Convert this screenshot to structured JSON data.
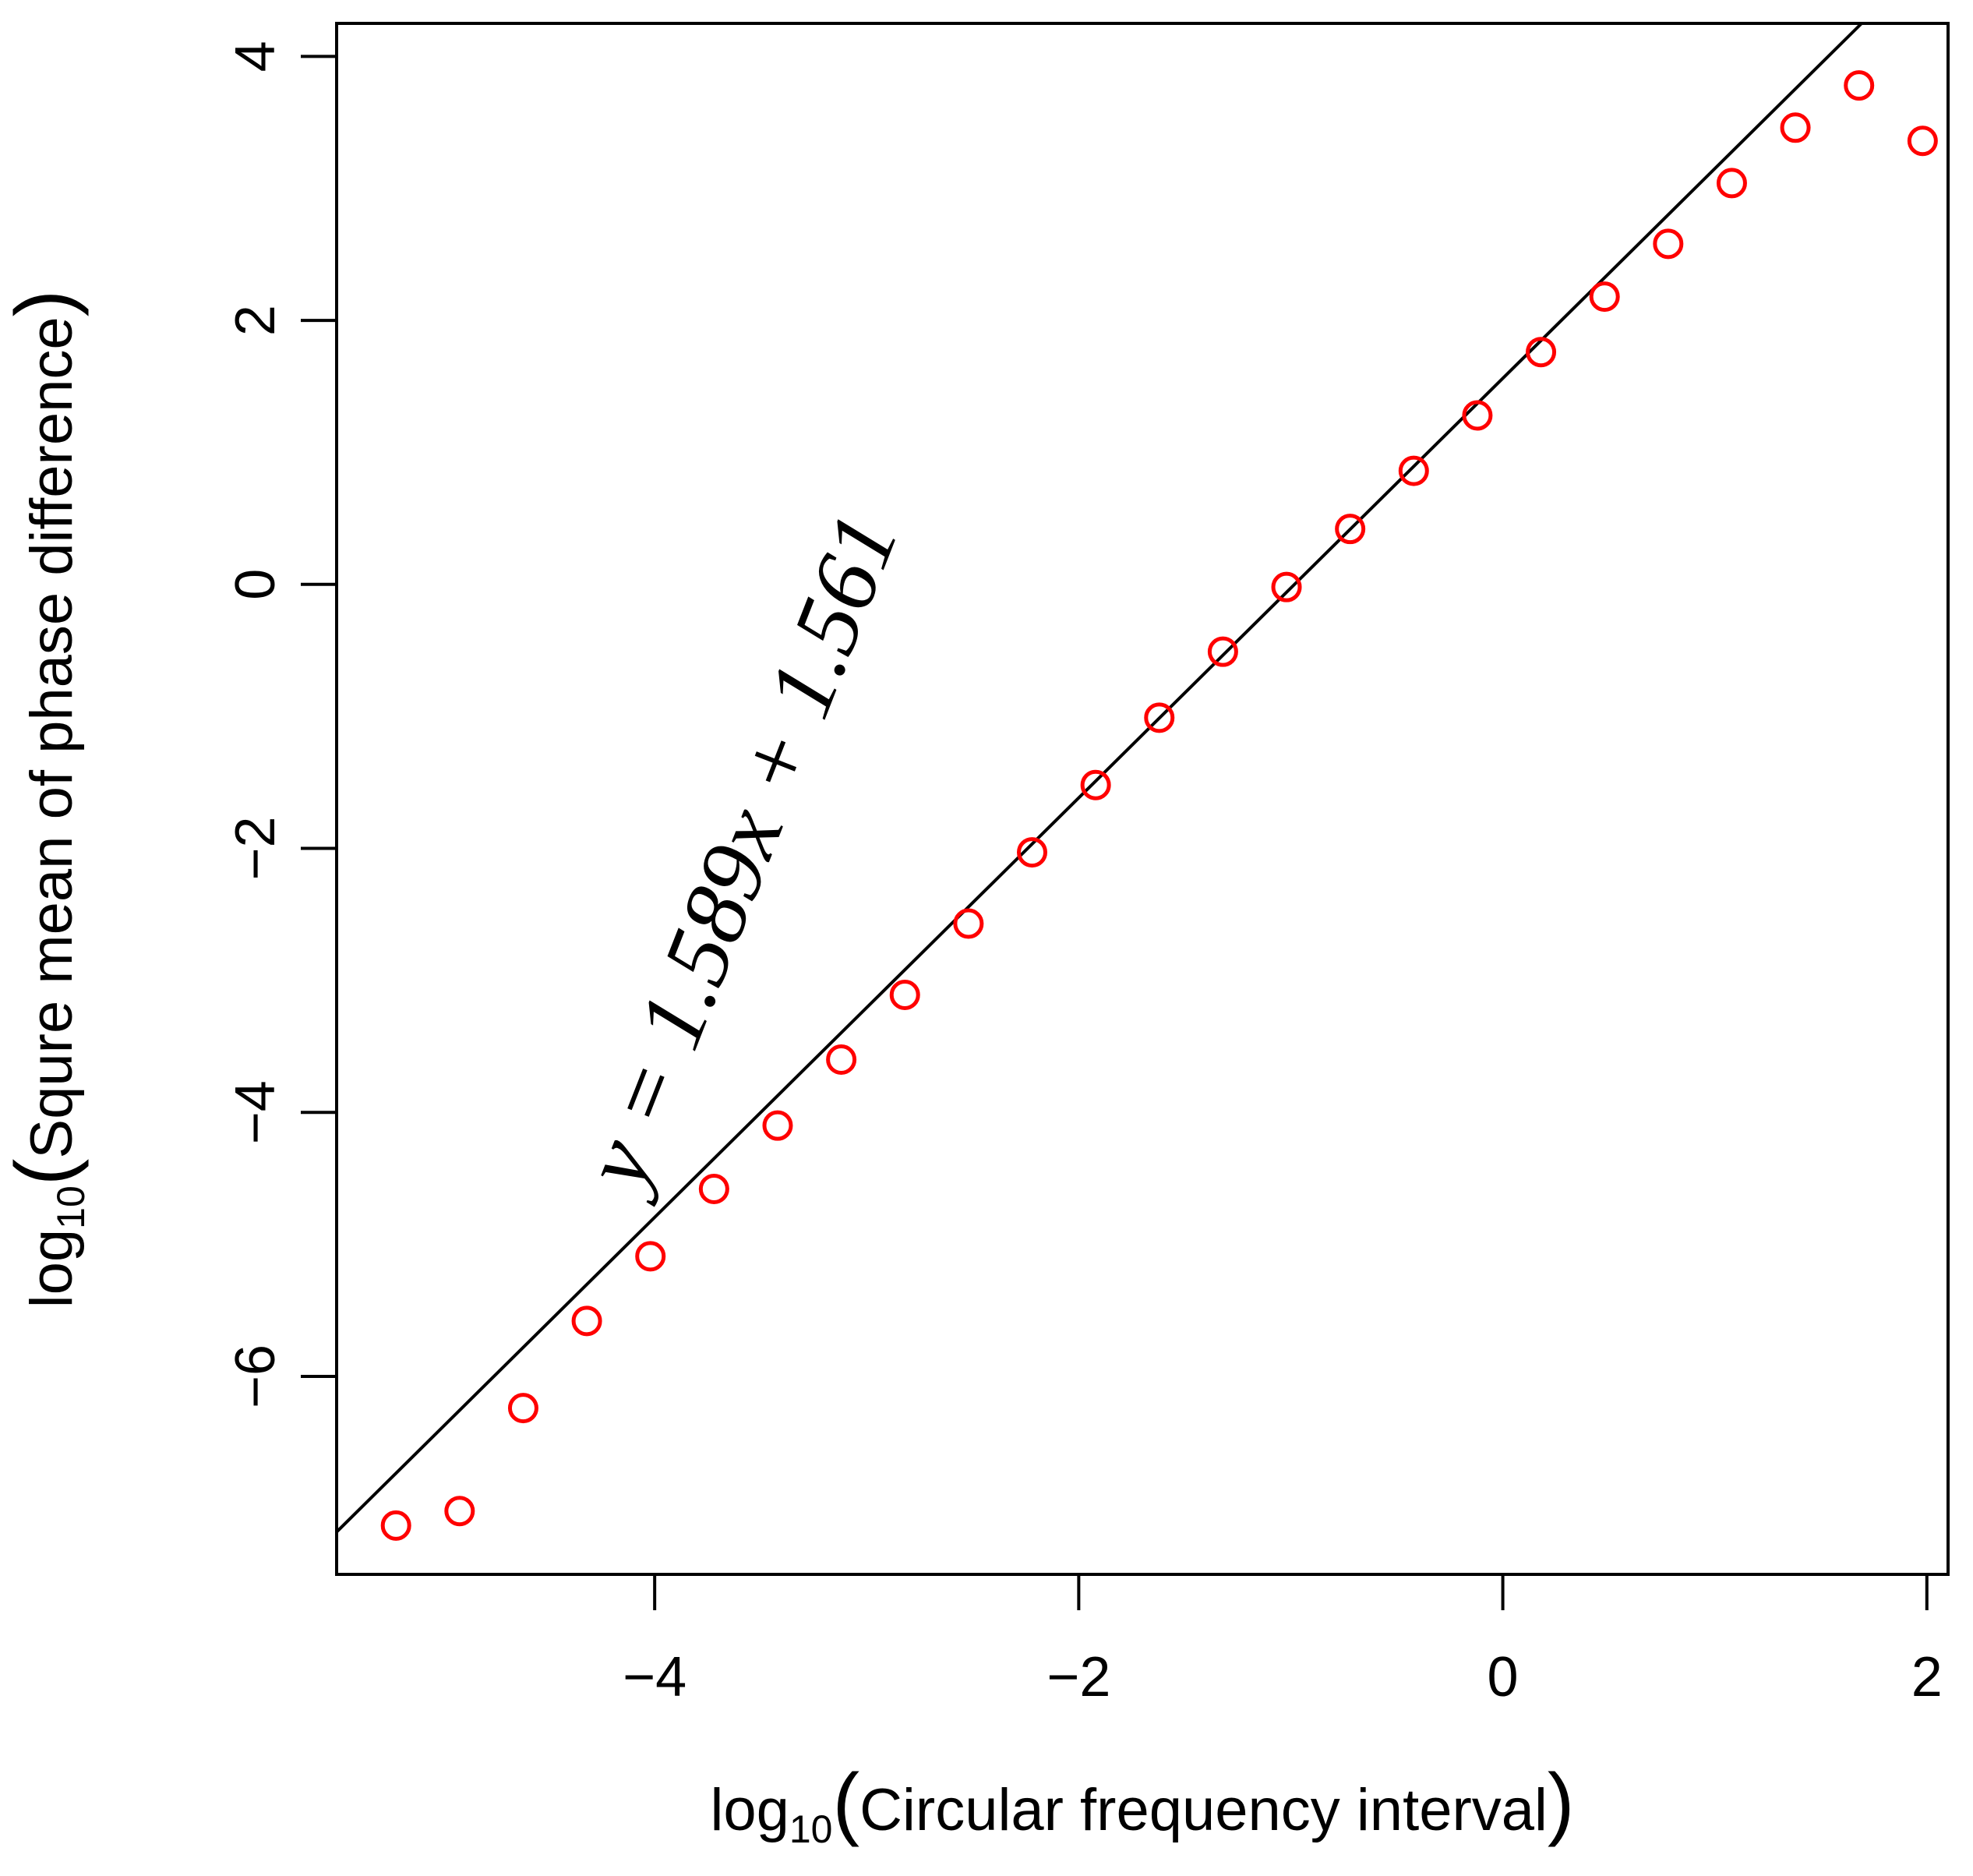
{
  "chart_data": {
    "type": "scatter",
    "xlabel": {
      "prefix": "log",
      "subscript": "10",
      "text": "Circular  frequency  interval"
    },
    "ylabel": {
      "prefix": "log",
      "subscript": "10",
      "text": "Squre  mean  of  phase  difference"
    },
    "xlim": [
      -5.5,
      2.1
    ],
    "ylim": [
      -7.5,
      4.25
    ],
    "xticks": [
      -4,
      -2,
      0,
      2
    ],
    "xtick_labels": [
      "−4",
      "−2",
      "0",
      "2"
    ],
    "yticks": [
      -6,
      -4,
      -2,
      0,
      2,
      4
    ],
    "ytick_labels": [
      "−6",
      "−4",
      "−2",
      "0",
      "2",
      "4"
    ],
    "grid": false,
    "legend": "none",
    "points": {
      "x": [
        -5.22,
        -4.92,
        -4.62,
        -4.32,
        -4.02,
        -3.72,
        -3.42,
        -3.12,
        -2.82,
        -2.52,
        -2.22,
        -1.92,
        -1.62,
        -1.32,
        -1.02,
        -0.72,
        -0.42,
        -0.12,
        0.18,
        0.48,
        0.78,
        1.08,
        1.38,
        1.68,
        1.98
      ],
      "y": [
        -7.13,
        -7.02,
        -6.24,
        -5.58,
        -5.09,
        -4.58,
        -4.1,
        -3.6,
        -3.11,
        -2.57,
        -2.03,
        -1.52,
        -1.01,
        -0.51,
        -0.02,
        0.42,
        0.86,
        1.28,
        1.76,
        2.18,
        2.58,
        3.04,
        3.46,
        3.78,
        3.36
      ],
      "marker": "open-circle",
      "color": "#ff0000"
    },
    "fit_line": {
      "slope": 1.589,
      "intercept": 1.561,
      "color": "#000000"
    },
    "annotation": {
      "text": "y = 1.589x + 1.561",
      "position_data": [
        -3.46,
        -2.1
      ]
    }
  }
}
